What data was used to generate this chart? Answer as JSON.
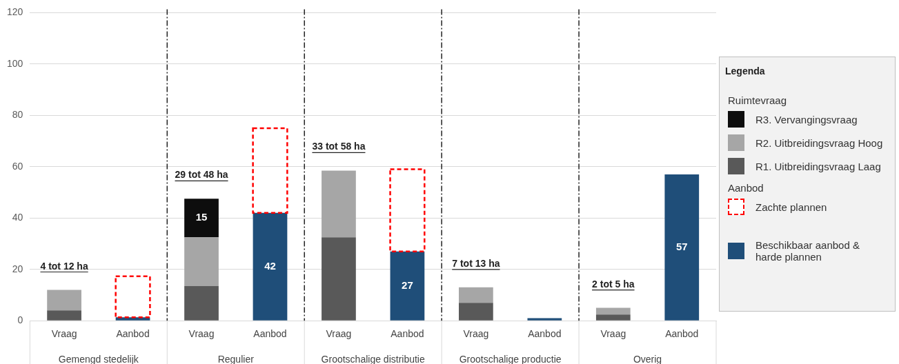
{
  "chart_data": {
    "type": "bar",
    "stacked": true,
    "categories": [
      "Vraag",
      "Aanbod",
      "Vraag",
      "Aanbod",
      "Vraag",
      "Aanbod",
      "Vraag",
      "Aanbod",
      "Vraag",
      "Aanbod"
    ],
    "series": [
      {
        "name": "R1. Uitbreidingsvraag Laag",
        "color": "#595959",
        "values": [
          4,
          null,
          13.5,
          null,
          32.5,
          null,
          7,
          null,
          2.4,
          null
        ]
      },
      {
        "name": "R2. Uitbreidingsvraag Hoog",
        "color": "#a6a6a6",
        "values": [
          8,
          null,
          19,
          null,
          26,
          null,
          6,
          null,
          2.6,
          null
        ]
      },
      {
        "name": "R3. Vervangingsvraag",
        "color": "#0d0d0d",
        "values": [
          null,
          null,
          15,
          null,
          null,
          null,
          null,
          null,
          null,
          null
        ],
        "value_labels": [
          null,
          null,
          "15",
          null,
          null,
          null,
          null,
          null,
          null,
          null
        ]
      },
      {
        "name": "Beschikbaar aanbod & harde plannen",
        "color": "#1f4e79",
        "values": [
          null,
          1.3,
          null,
          42,
          null,
          27,
          null,
          1,
          null,
          57
        ],
        "value_labels": [
          null,
          null,
          null,
          "42",
          null,
          "27",
          null,
          null,
          null,
          "57"
        ]
      },
      {
        "name": "Zachte plannen",
        "color": "#ff0000",
        "line_style": "dashed",
        "values": [
          null,
          16,
          null,
          33,
          null,
          32,
          null,
          null,
          null,
          null
        ]
      }
    ],
    "ylim": [
      0,
      120
    ],
    "yticks": [
      0,
      20,
      40,
      60,
      80,
      100,
      120
    ],
    "grid": "y",
    "legend": "right",
    "legend_title": "Legenda",
    "annotations": [
      "4 tot 12 ha",
      "29 tot 48 ha",
      "33 tot 58 ha",
      "7 tot 13 ha",
      "2 tot 5 ha",
      "Gemengd stedelijk",
      "Regulier",
      "Grootschalige distributie",
      "Grootschalige productie",
      "Overig",
      "Ruimtevraag",
      "Aanbod"
    ]
  }
}
